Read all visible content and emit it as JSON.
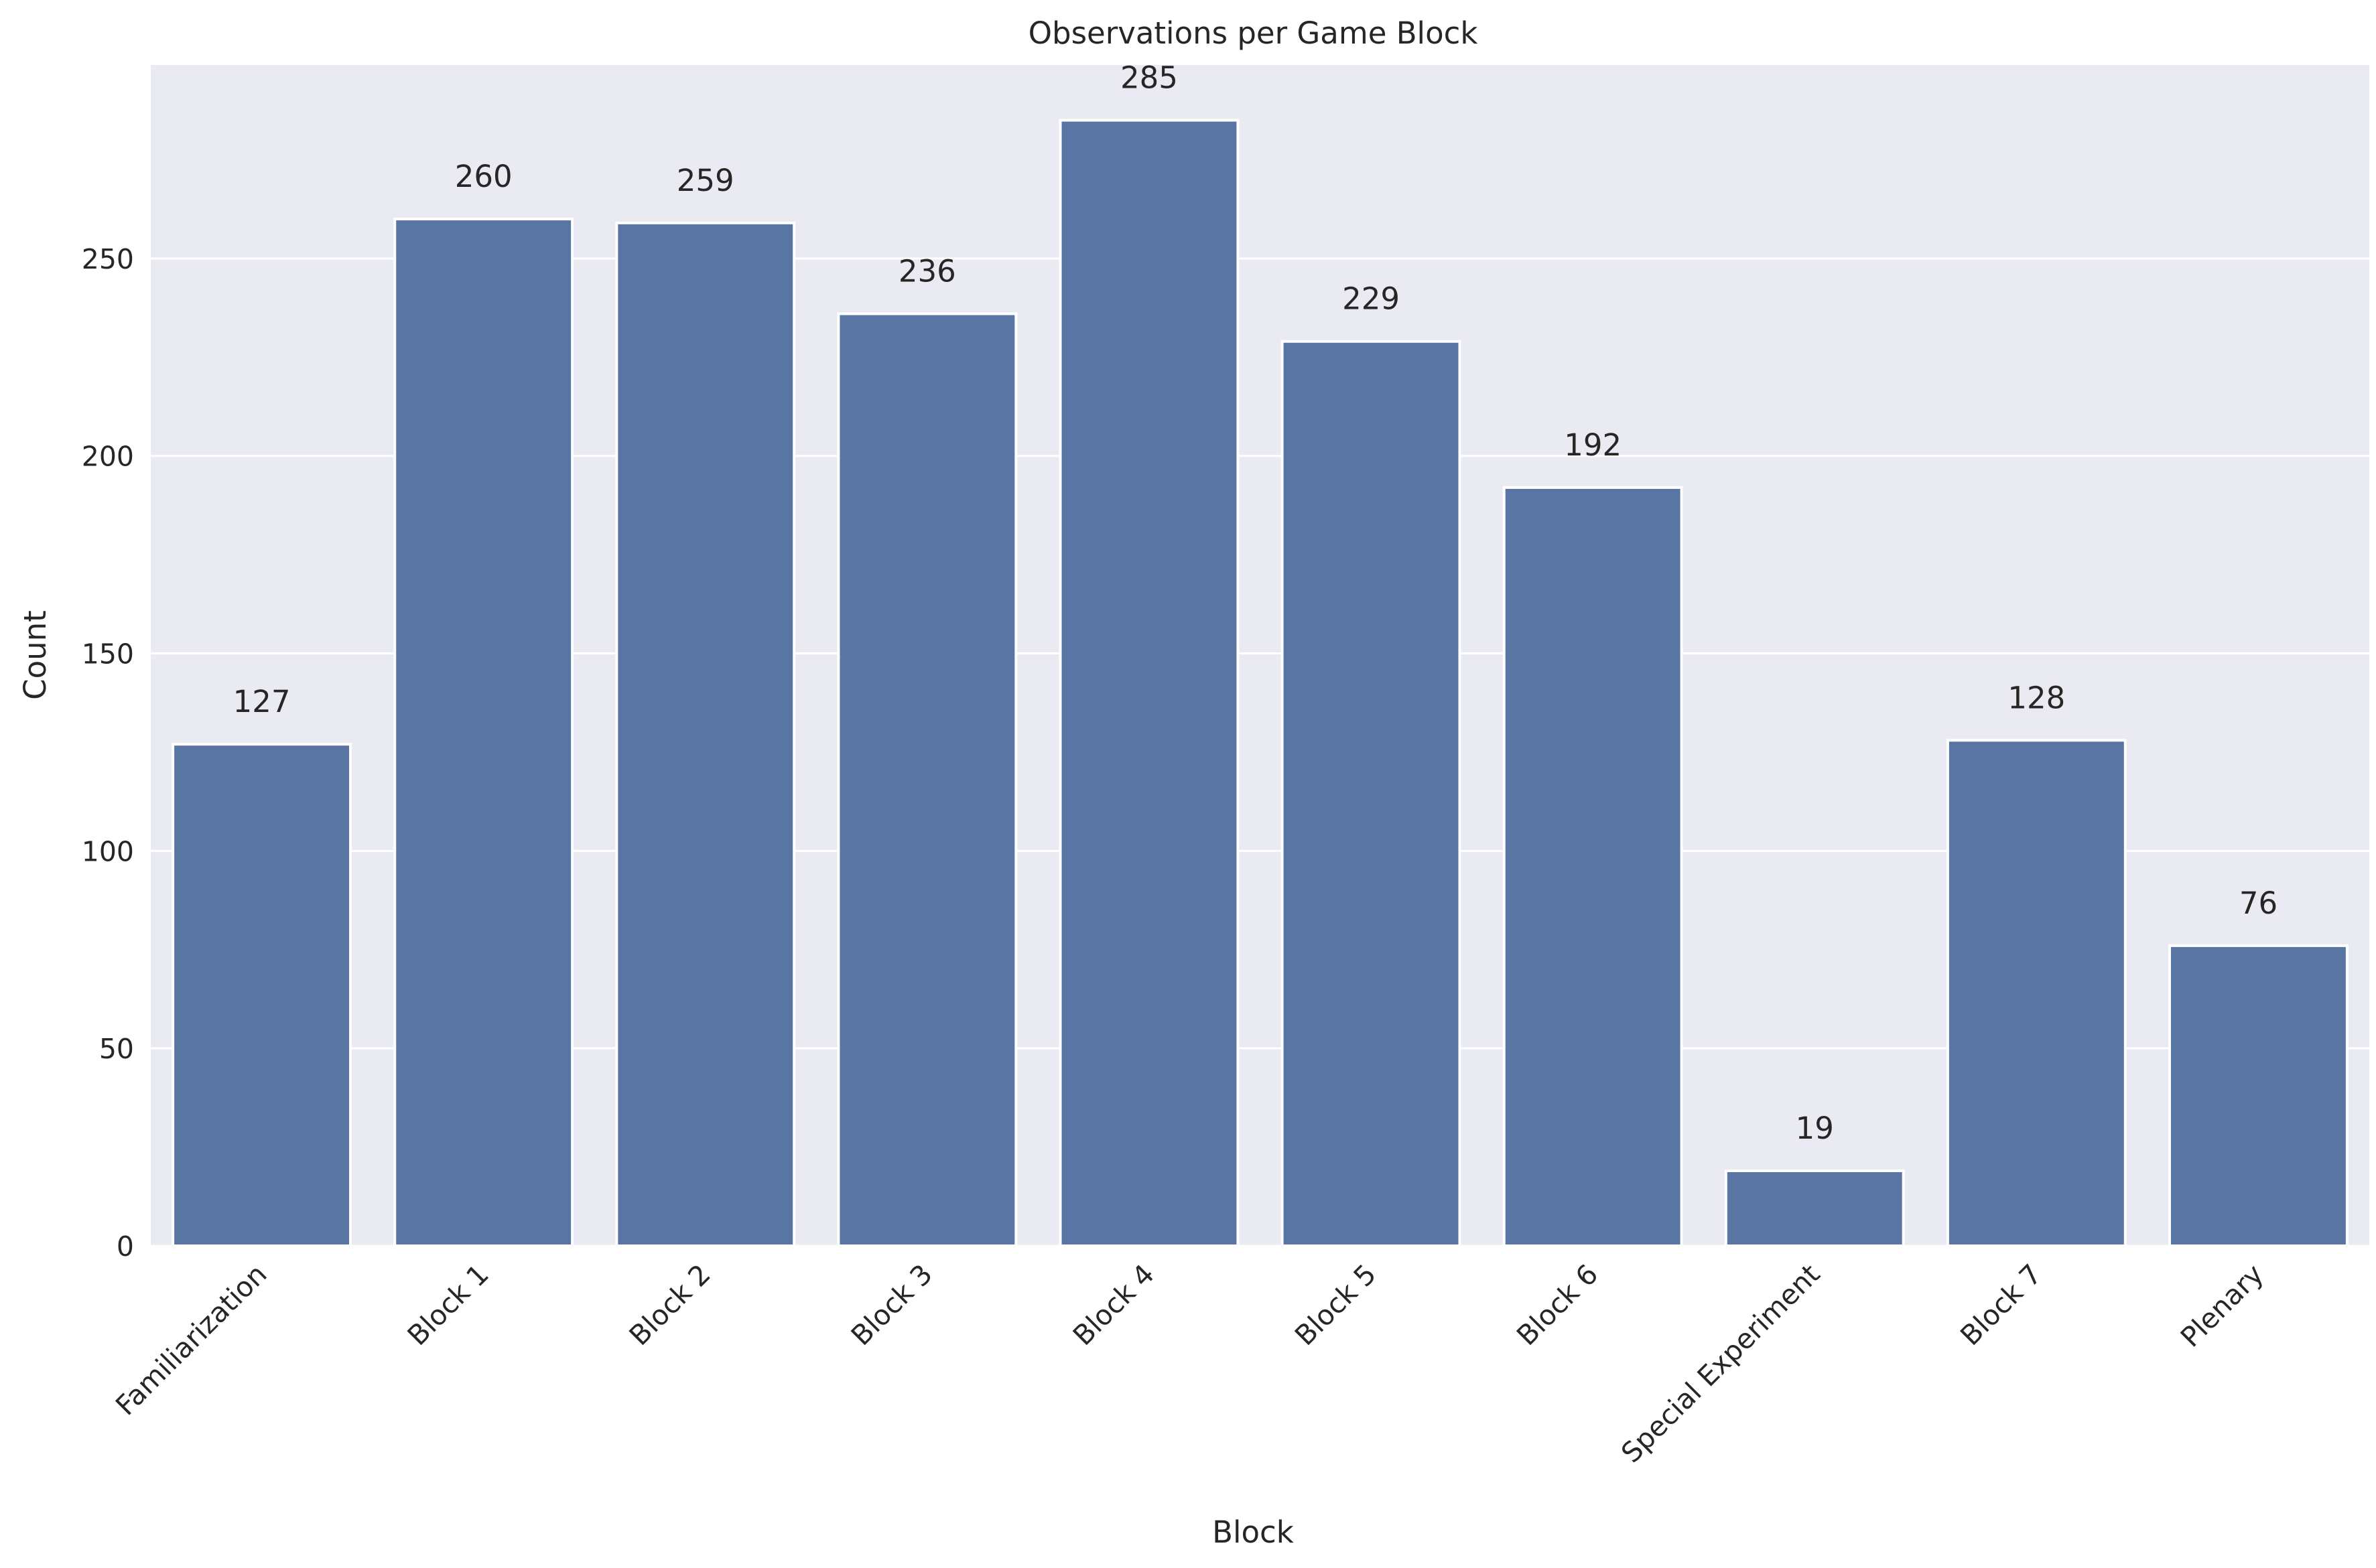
{
  "chart_data": {
    "type": "bar",
    "title": "Observations per Game Block",
    "xlabel": "Block",
    "ylabel": "Count",
    "categories": [
      "Familiarization",
      "Block 1",
      "Block 2",
      "Block 3",
      "Block 4",
      "Block 5",
      "Block 6",
      "Special Experiment",
      "Block 7",
      "Plenary"
    ],
    "values": [
      127,
      260,
      259,
      236,
      285,
      229,
      192,
      19,
      128,
      76
    ],
    "data_labels": [
      "127",
      "260",
      "259",
      "236",
      "285",
      "229",
      "192",
      "19",
      "128",
      "76"
    ],
    "ylim": [
      0,
      299
    ],
    "yticks": [
      0,
      50,
      100,
      150,
      200,
      250
    ],
    "ytick_labels": [
      "0",
      "50",
      "100",
      "150",
      "200",
      "250"
    ],
    "grid": true,
    "x_tick_rotation": "45 degrees",
    "colors": {
      "bar": "#5975a4",
      "plot_background": "#eaeaf2",
      "grid": "#ffffff",
      "text": "#262626"
    }
  }
}
